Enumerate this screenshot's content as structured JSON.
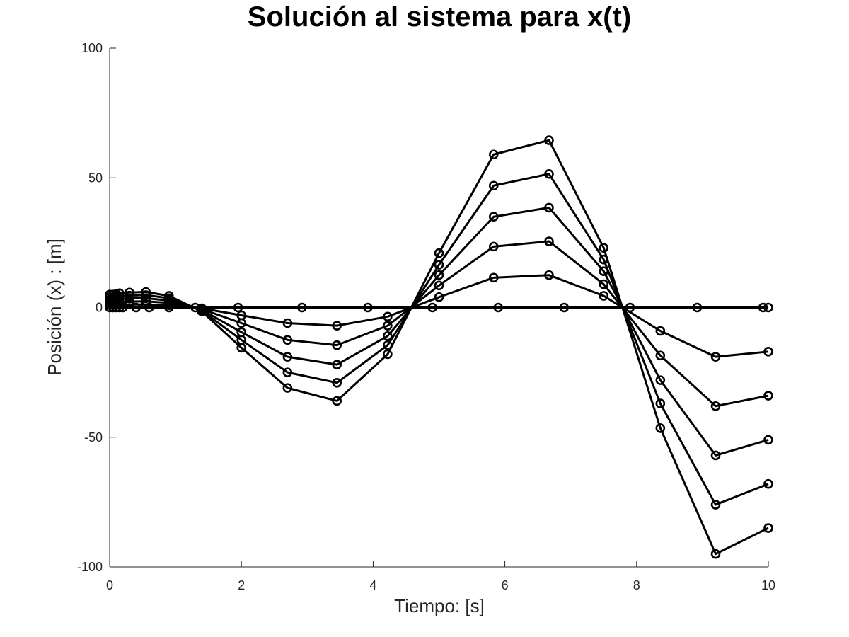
{
  "chart_data": {
    "type": "line",
    "title": "Solución al sistema para x(t)",
    "xlabel": "Tiempo: [s]",
    "ylabel": "Posición (x) : [m]",
    "xlim": [
      0,
      10
    ],
    "ylim": [
      -100,
      100
    ],
    "xticks": [
      "0",
      "2",
      "4",
      "6",
      "8",
      "10"
    ],
    "yticks": [
      "100",
      "50",
      "0",
      "-50",
      "-100"
    ],
    "grid": false,
    "line_color": "#000000",
    "marker": "circle",
    "series": [
      {
        "x": [
          0,
          0.05,
          0.1,
          0.15,
          0.3,
          0.55,
          0.9,
          1.4,
          2.0,
          2.7,
          3.45,
          4.22,
          5.0,
          5.83,
          6.67,
          7.5,
          8.36,
          9.2,
          10
        ],
        "y": [
          5,
          5,
          5.2,
          5.5,
          5.8,
          6,
          4.5,
          -1.5,
          -15.5,
          -31,
          -36,
          -18,
          21,
          59,
          64.5,
          23,
          -46.5,
          -95,
          -85
        ]
      },
      {
        "x": [
          0,
          0.05,
          0.1,
          0.15,
          0.3,
          0.55,
          0.9,
          1.4,
          2.0,
          2.7,
          3.45,
          4.22,
          5.0,
          5.83,
          6.67,
          7.5,
          8.36,
          9.2,
          10
        ],
        "y": [
          4,
          4,
          4.2,
          4.4,
          4.6,
          4.8,
          3.6,
          -1.2,
          -12.5,
          -25,
          -29,
          -14.5,
          16.5,
          47,
          51.5,
          18.5,
          -37,
          -76,
          -68
        ]
      },
      {
        "x": [
          0,
          0.05,
          0.1,
          0.15,
          0.3,
          0.55,
          0.9,
          1.4,
          2.0,
          2.7,
          3.45,
          4.22,
          5.0,
          5.83,
          6.67,
          7.5,
          8.36,
          9.2,
          10
        ],
        "y": [
          3,
          3,
          3.1,
          3.3,
          3.5,
          3.6,
          2.7,
          -0.9,
          -9.5,
          -19,
          -22,
          -11,
          12.5,
          35,
          38.5,
          14,
          -28,
          -57,
          -51
        ]
      },
      {
        "x": [
          0,
          0.05,
          0.1,
          0.15,
          0.3,
          0.55,
          0.9,
          1.4,
          2.0,
          2.7,
          3.45,
          4.22,
          5.0,
          5.83,
          6.67,
          7.5,
          8.36,
          9.2,
          10
        ],
        "y": [
          2,
          2,
          2.1,
          2.2,
          2.3,
          2.4,
          1.8,
          -0.6,
          -6,
          -12.5,
          -14.5,
          -7,
          8.5,
          23.5,
          25.5,
          9,
          -18.5,
          -38,
          -34
        ]
      },
      {
        "x": [
          0,
          0.05,
          0.1,
          0.15,
          0.3,
          0.55,
          0.9,
          1.4,
          2.0,
          2.7,
          3.45,
          4.22,
          5.0,
          5.83,
          6.67,
          7.5,
          8.36,
          9.2,
          10
        ],
        "y": [
          1,
          1,
          1.05,
          1.1,
          1.15,
          1.2,
          0.9,
          -0.3,
          -3,
          -6,
          -7,
          -3.5,
          4,
          11.5,
          12.5,
          4.5,
          -9,
          -19,
          -17
        ]
      },
      {
        "x": [
          0,
          0.05,
          0.1,
          0.15,
          0.2,
          0.4,
          0.6,
          0.9,
          1.3,
          1.95,
          2.92,
          3.92,
          4.9,
          5.9,
          6.9,
          7.9,
          8.92,
          9.92,
          10
        ],
        "y": [
          0,
          0,
          0,
          0,
          0,
          0,
          0,
          0,
          0,
          0,
          0,
          0,
          0,
          0,
          0,
          0,
          0,
          0,
          0
        ]
      }
    ]
  }
}
